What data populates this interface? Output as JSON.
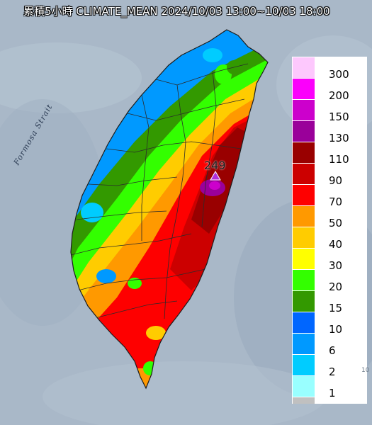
{
  "title": "累積5小時 CLIMATE_MEAN 2024/10/03 13:00~10/03 18:00",
  "sea_label": "Formosa Strait",
  "max_value": "249",
  "max_marker_color": "#b030d8",
  "legend": {
    "bins": [
      {
        "label": "300",
        "color": "#fdc8fd"
      },
      {
        "label": "200",
        "color": "#fb00fb"
      },
      {
        "label": "150",
        "color": "#cc00cc"
      },
      {
        "label": "130",
        "color": "#9a009a"
      },
      {
        "label": "110",
        "color": "#990000"
      },
      {
        "label": "90",
        "color": "#cc0000"
      },
      {
        "label": "70",
        "color": "#fe0000"
      },
      {
        "label": "50",
        "color": "#ff9900"
      },
      {
        "label": "40",
        "color": "#ffcc00"
      },
      {
        "label": "30",
        "color": "#ffff00"
      },
      {
        "label": "20",
        "color": "#33ff00"
      },
      {
        "label": "15",
        "color": "#339900"
      },
      {
        "label": "10",
        "color": "#0066ff"
      },
      {
        "label": "6",
        "color": "#0099ff"
      },
      {
        "label": "2",
        "color": "#00ccff"
      },
      {
        "label": "1",
        "color": "#99ffff"
      }
    ],
    "no_data_color": "#c0c0c0"
  },
  "edge_mark": "10"
}
